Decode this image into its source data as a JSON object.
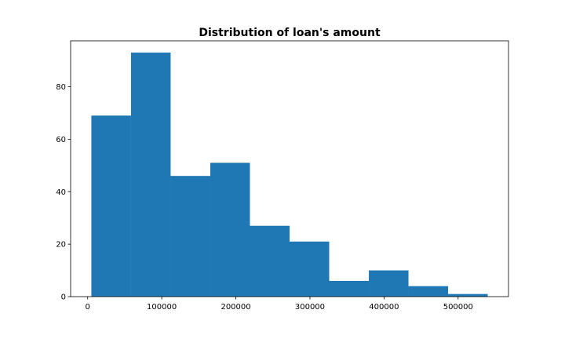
{
  "chart_data": {
    "type": "bar",
    "title": "Distribution of loan's amount",
    "xlabel": "",
    "ylabel": "",
    "bin_edges": [
      5000,
      58500,
      112000,
      165500,
      219000,
      272500,
      326000,
      379500,
      433000,
      486500,
      540000
    ],
    "counts": [
      69,
      93,
      46,
      51,
      27,
      21,
      6,
      10,
      4,
      1
    ],
    "xlim": [
      -23000,
      568000
    ],
    "ylim": [
      0,
      97.5
    ],
    "xticks": [
      0,
      100000,
      200000,
      300000,
      400000,
      500000
    ],
    "xtick_labels": [
      "0",
      "100000",
      "200000",
      "300000",
      "400000",
      "500000"
    ],
    "yticks": [
      0,
      20,
      40,
      60,
      80
    ],
    "ytick_labels": [
      "0",
      "20",
      "40",
      "60",
      "80"
    ],
    "grid": false,
    "bar_color": "#1f77b4"
  }
}
